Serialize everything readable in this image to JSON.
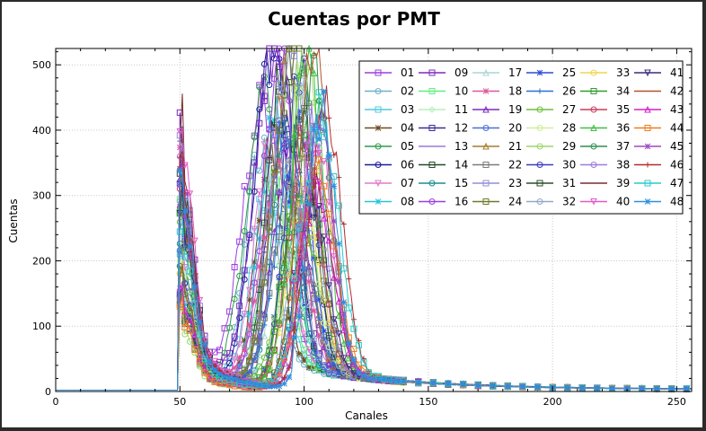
{
  "chart_data": {
    "type": "line",
    "title": "Cuentas por PMT",
    "xlabel": "Canales",
    "ylabel": "Cuentas",
    "xlim": [
      0,
      256
    ],
    "ylim": [
      0,
      525
    ],
    "x_ticks": [
      0,
      50,
      100,
      150,
      200,
      250
    ],
    "y_ticks": [
      0,
      100,
      200,
      300,
      400,
      500
    ],
    "grid": true,
    "legend_position": "top-right",
    "legend_columns": 6,
    "series_count": 48,
    "colors": [
      "#9b3de0",
      "#6fb0c9",
      "#4fc9e0",
      "#6b4a1f",
      "#2f9b4b",
      "#1b1b9b",
      "#e07bc9",
      "#29c3d6",
      "#7b2bbf",
      "#5ff07f",
      "#b7f0b7",
      "#3b2b9b",
      "#9b7bd6",
      "#204a2b",
      "#1a8f8f",
      "#9b3de0",
      "#a9d6d6",
      "#e0569b",
      "#7b2bbf",
      "#4b6fd6",
      "#a97b2b",
      "#7b7b7b",
      "#8f8fd6",
      "#6b7b2b",
      "#2b4bd6",
      "#2b6fd6",
      "#6bbf3b",
      "#c9f09b",
      "#9bd66b",
      "#3b3bbf",
      "#2b4b2b",
      "#8fa9c9",
      "#f0d64b",
      "#2f9b2f",
      "#c93b5b",
      "#3fbf3f",
      "#2f8f4f",
      "#9b7be0",
      "#7b2b2b",
      "#e05ac9",
      "#3b2b7b",
      "#b5512b",
      "#d61fc9",
      "#f07b1f",
      "#9b4bbf",
      "#b52b2b",
      "#2bc9c9",
      "#2b8fe0"
    ],
    "series": [
      {
        "name": "01",
        "marker": "square"
      },
      {
        "name": "02",
        "marker": "circle"
      },
      {
        "name": "03",
        "marker": "square"
      },
      {
        "name": "04",
        "marker": "star"
      },
      {
        "name": "05",
        "marker": "circle"
      },
      {
        "name": "06",
        "marker": "circle"
      },
      {
        "name": "07",
        "marker": "triangle-down"
      },
      {
        "name": "08",
        "marker": "star"
      },
      {
        "name": "09",
        "marker": "square"
      },
      {
        "name": "10",
        "marker": "square"
      },
      {
        "name": "11",
        "marker": "diamond"
      },
      {
        "name": "12",
        "marker": "square"
      },
      {
        "name": "13",
        "marker": "line"
      },
      {
        "name": "14",
        "marker": "square"
      },
      {
        "name": "15",
        "marker": "circle"
      },
      {
        "name": "16",
        "marker": "circle"
      },
      {
        "name": "17",
        "marker": "triangle"
      },
      {
        "name": "18",
        "marker": "star"
      },
      {
        "name": "19",
        "marker": "triangle"
      },
      {
        "name": "20",
        "marker": "circle"
      },
      {
        "name": "21",
        "marker": "triangle"
      },
      {
        "name": "22",
        "marker": "square"
      },
      {
        "name": "23",
        "marker": "square"
      },
      {
        "name": "24",
        "marker": "square"
      },
      {
        "name": "25",
        "marker": "star"
      },
      {
        "name": "26",
        "marker": "plus"
      },
      {
        "name": "27",
        "marker": "circle"
      },
      {
        "name": "28",
        "marker": "circle"
      },
      {
        "name": "29",
        "marker": "circle"
      },
      {
        "name": "30",
        "marker": "circle"
      },
      {
        "name": "31",
        "marker": "square"
      },
      {
        "name": "32",
        "marker": "circle"
      },
      {
        "name": "33",
        "marker": "circle"
      },
      {
        "name": "34",
        "marker": "square"
      },
      {
        "name": "35",
        "marker": "circle"
      },
      {
        "name": "36",
        "marker": "triangle"
      },
      {
        "name": "37",
        "marker": "circle"
      },
      {
        "name": "38",
        "marker": "circle"
      },
      {
        "name": "39",
        "marker": "line"
      },
      {
        "name": "40",
        "marker": "triangle-down"
      },
      {
        "name": "41",
        "marker": "triangle-down"
      },
      {
        "name": "42",
        "marker": "line"
      },
      {
        "name": "43",
        "marker": "triangle"
      },
      {
        "name": "44",
        "marker": "square"
      },
      {
        "name": "45",
        "marker": "star"
      },
      {
        "name": "46",
        "marker": "plus"
      },
      {
        "name": "47",
        "marker": "square"
      },
      {
        "name": "48",
        "marker": "star"
      }
    ],
    "spectrum_shape": {
      "baseline_until_channel": 49,
      "baseline_value": 2,
      "first_peak_channel": 52,
      "first_peak_values_range": [
        60,
        230
      ],
      "main_peak_channel_range": [
        84,
        108
      ],
      "main_peak_values_range": [
        250,
        525
      ],
      "tail_value_at_256": 3
    }
  }
}
